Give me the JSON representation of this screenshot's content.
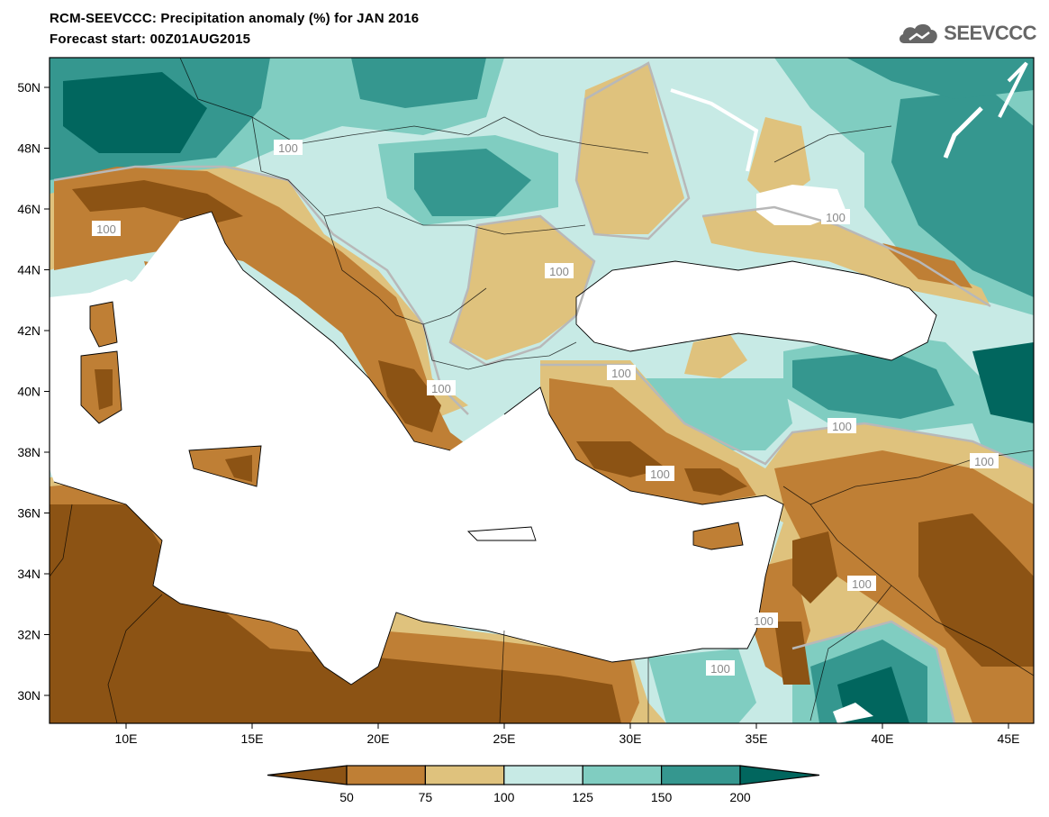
{
  "title": {
    "line1": "RCM-SEEVCCC: Precipitation anomaly (%) for JAN 2016",
    "line2": "Forecast start: 00Z01AUG2015"
  },
  "logo": {
    "text": "SEEVCCC",
    "icon": "cloud-icon"
  },
  "map": {
    "lat_labels": [
      "50N",
      "48N",
      "46N",
      "44N",
      "42N",
      "40N",
      "38N",
      "36N",
      "34N",
      "32N",
      "30N"
    ],
    "lon_labels": [
      "10E",
      "15E",
      "20E",
      "25E",
      "30E",
      "35E",
      "40E",
      "45E"
    ],
    "contour_labels": [
      "100",
      "100",
      "100",
      "100",
      "100",
      "100",
      "100",
      "100",
      "100",
      "100",
      "100",
      "100"
    ]
  },
  "colorbar": {
    "levels": [
      "50",
      "75",
      "100",
      "125",
      "150",
      "200"
    ],
    "colors": [
      "#8c5314",
      "#bf7f35",
      "#dfc27d",
      "#c7eae5",
      "#80cdc1",
      "#35978f",
      "#01665e"
    ]
  }
}
